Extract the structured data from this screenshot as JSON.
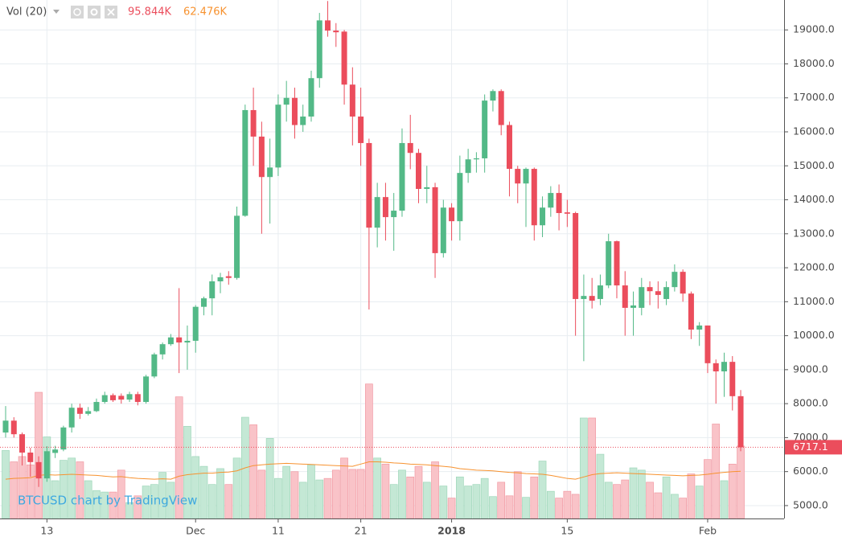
{
  "chart_data": {
    "type": "candlestick",
    "indicator": "Vol (20)",
    "volume_label": "95.844K",
    "volume_ma_label": "62.476K",
    "watermark": "BTCUSD chart by TradingView",
    "up_color": "#53b987",
    "down_color": "#eb4d5c",
    "volume_up_color": "#c4e8d5",
    "volume_down_color": "#f9c3c8",
    "ma_color": "#f7922f",
    "grid": true,
    "categories": [
      null,
      null,
      null,
      null,
      null,
      "13",
      null,
      null,
      null,
      null,
      null,
      null,
      null,
      null,
      null,
      null,
      null,
      null,
      null,
      null,
      null,
      null,
      null,
      "Dec",
      null,
      null,
      null,
      null,
      null,
      null,
      null,
      null,
      null,
      "11",
      null,
      null,
      null,
      null,
      null,
      null,
      null,
      null,
      null,
      "21",
      null,
      null,
      null,
      null,
      null,
      null,
      null,
      null,
      null,
      null,
      "2018",
      null,
      null,
      null,
      null,
      null,
      null,
      null,
      null,
      null,
      null,
      null,
      null,
      null,
      "15",
      null,
      null,
      null,
      null,
      null,
      null,
      null,
      null,
      null,
      null,
      null,
      null,
      null,
      null,
      null,
      null,
      "Feb",
      null,
      null,
      null,
      null
    ],
    "open": [
      7150,
      7500,
      7100,
      6560,
      6280,
      5800,
      6550,
      6650,
      7300,
      7880,
      7700,
      7780,
      8050,
      8250,
      8230,
      8120,
      8280,
      8050,
      8800,
      9450,
      9750,
      9950,
      9800,
      9850,
      10850,
      11100,
      11600,
      11750,
      11700,
      13530,
      16640,
      15860,
      14670,
      14950,
      16800,
      17000,
      16200,
      16450,
      17580,
      19280,
      18980,
      18950,
      17390,
      16450,
      15670,
      13180,
      14080,
      13490,
      13680,
      15670,
      15380,
      14320,
      14370,
      12430,
      13770,
      13370,
      14790,
      15190,
      15220,
      16920,
      17200,
      16200,
      14910,
      14480,
      14910,
      13250,
      13770,
      14200,
      13630,
      13610,
      11080,
      11170,
      11080,
      11480,
      12780,
      11480,
      10820,
      10820,
      11430,
      11310,
      11080,
      11430,
      11880,
      11240,
      10180,
      10300,
      9190,
      8950,
      9230,
      8220
    ],
    "high": [
      7930,
      7600,
      7150,
      6700,
      6450,
      6750,
      6760,
      7350,
      8000,
      8000,
      7900,
      8150,
      8350,
      8300,
      8300,
      8350,
      8350,
      8850,
      9500,
      9800,
      10050,
      11400,
      10300,
      10900,
      11150,
      11800,
      11850,
      11900,
      13800,
      16800,
      17300,
      16300,
      15800,
      17100,
      17500,
      17300,
      16800,
      17800,
      19500,
      19850,
      19200,
      19000,
      17900,
      17300,
      15800,
      14500,
      14500,
      14200,
      16100,
      16500,
      15500,
      15000,
      14500,
      14000,
      13900,
      15300,
      15500,
      15400,
      17100,
      17250,
      17250,
      16300,
      15000,
      14950,
      14950,
      14100,
      14400,
      14450,
      14000,
      13650,
      11800,
      11700,
      11800,
      13000,
      12800,
      11900,
      11300,
      11700,
      11600,
      11600,
      11600,
      12100,
      11950,
      11300,
      10400,
      10300,
      9300,
      9500,
      9400,
      8400
    ],
    "low": [
      7000,
      7000,
      6180,
      5850,
      5550,
      5700,
      6400,
      6600,
      7150,
      7550,
      7650,
      7750,
      8000,
      8050,
      8000,
      8050,
      7950,
      8000,
      8750,
      9300,
      9700,
      8900,
      9000,
      9500,
      10600,
      10600,
      11250,
      11500,
      11650,
      13500,
      15000,
      13000,
      13300,
      14700,
      16300,
      15800,
      16000,
      16300,
      17300,
      18800,
      18500,
      16800,
      15600,
      15000,
      10770,
      12600,
      12800,
      12500,
      13500,
      14900,
      13900,
      13900,
      11700,
      12300,
      12800,
      12800,
      14500,
      14800,
      14800,
      16600,
      15900,
      14100,
      13900,
      13200,
      12800,
      12900,
      13500,
      13100,
      13200,
      10000,
      9250,
      10800,
      10900,
      11400,
      11100,
      10000,
      10000,
      10600,
      10900,
      10800,
      10900,
      11300,
      11000,
      9900,
      9700,
      8900,
      8000,
      8200,
      7800,
      6600
    ],
    "close": [
      7500,
      7100,
      6560,
      6280,
      5800,
      6600,
      6650,
      7300,
      7880,
      7700,
      7780,
      8050,
      8250,
      8100,
      8120,
      8280,
      8050,
      8800,
      9450,
      9750,
      9950,
      9800,
      9850,
      10850,
      11100,
      11600,
      11720,
      11700,
      13530,
      16640,
      15860,
      14670,
      14950,
      16800,
      17000,
      16200,
      16450,
      17580,
      19280,
      18980,
      18930,
      17390,
      16450,
      15670,
      13180,
      14080,
      13490,
      13680,
      15670,
      15380,
      14320,
      14370,
      12430,
      13770,
      13370,
      14790,
      15190,
      15220,
      16920,
      17200,
      16200,
      14910,
      14480,
      14910,
      13250,
      13770,
      14200,
      13610,
      13590,
      11080,
      11170,
      11030,
      11480,
      12780,
      11480,
      10820,
      10890,
      11430,
      11310,
      11200,
      11430,
      11880,
      11240,
      10180,
      10300,
      9190,
      8950,
      9230,
      8220,
      6717.1
    ],
    "volume": [
      90000,
      75000,
      82000,
      71000,
      167000,
      108000,
      50000,
      77000,
      80000,
      75000,
      50000,
      37000,
      35000,
      35000,
      64000,
      21000,
      30000,
      43000,
      45000,
      61000,
      48000,
      161000,
      122000,
      82000,
      69000,
      45000,
      66000,
      45000,
      80000,
      134000,
      124000,
      64000,
      106000,
      53000,
      69000,
      62000,
      48000,
      71000,
      51000,
      53000,
      64000,
      80000,
      65000,
      65000,
      178000,
      80000,
      72000,
      45000,
      64000,
      55000,
      69000,
      48000,
      75000,
      43000,
      27000,
      55000,
      43000,
      45000,
      53000,
      29000,
      48000,
      30000,
      62000,
      28000,
      55000,
      76000,
      36000,
      27000,
      36000,
      32000,
      133000,
      133000,
      85000,
      48000,
      45000,
      51000,
      67000,
      64000,
      48000,
      34000,
      55000,
      32000,
      27000,
      59000,
      43000,
      78000,
      125000,
      50000,
      72000,
      95844
    ],
    "volume_ma": [
      52000,
      53000,
      53500,
      54000,
      57000,
      58000,
      57500,
      58000,
      58500,
      58000,
      57500,
      57000,
      56000,
      55000,
      55500,
      54000,
      53000,
      52500,
      52000,
      52500,
      52000,
      56000,
      58000,
      59000,
      60000,
      60000,
      61000,
      61500,
      63000,
      67000,
      70000,
      71000,
      72000,
      72500,
      73000,
      72500,
      72000,
      71500,
      71000,
      70500,
      70000,
      69500,
      69000,
      72000,
      75000,
      75000,
      74500,
      73500,
      73000,
      72000,
      71500,
      71000,
      70000,
      69000,
      68000,
      66000,
      65000,
      64000,
      63500,
      63000,
      62000,
      61000,
      60500,
      59500,
      59000,
      58500,
      57000,
      55000,
      53000,
      52000,
      55000,
      58000,
      59500,
      60000,
      60500,
      60000,
      59500,
      59000,
      58500,
      58000,
      57500,
      57000,
      56500,
      57000,
      57500,
      58500,
      60000,
      61000,
      62000,
      62476
    ],
    "ylim": [
      4620,
      19880
    ],
    "yticks": [
      {
        "value": 5000,
        "label": "5000.0"
      },
      {
        "value": 6000,
        "label": "6000.0"
      },
      {
        "value": 7000,
        "label": "7000.0"
      },
      {
        "value": 8000,
        "label": "8000.0"
      },
      {
        "value": 9000,
        "label": "9000.0"
      },
      {
        "value": 10000,
        "label": "10000.0"
      },
      {
        "value": 11000,
        "label": "11000.0"
      },
      {
        "value": 12000,
        "label": "12000.0"
      },
      {
        "value": 13000,
        "label": "13000.0"
      },
      {
        "value": 14000,
        "label": "14000.0"
      },
      {
        "value": 15000,
        "label": "15000.0"
      },
      {
        "value": 16000,
        "label": "16000.0"
      },
      {
        "value": 17000,
        "label": "17000.0"
      },
      {
        "value": 18000,
        "label": "18000.0"
      },
      {
        "value": 19000,
        "label": "19000.0"
      }
    ]
  }
}
